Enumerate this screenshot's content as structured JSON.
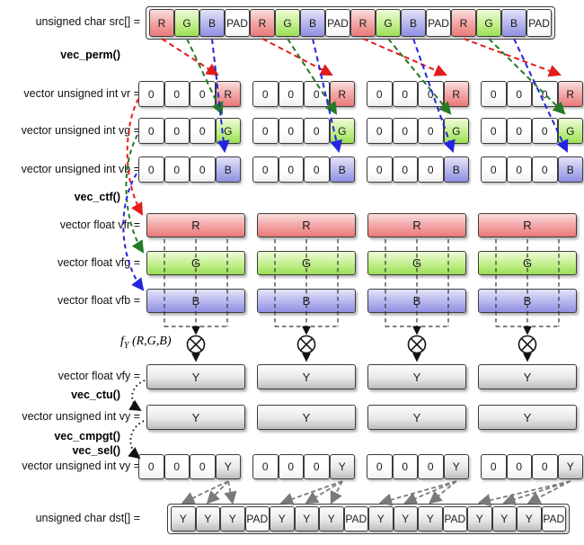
{
  "diagram": {
    "labels": {
      "src": "unsigned char src[] =",
      "vec_perm": "vec_perm()",
      "vr": "vector unsigned int vr =",
      "vg": "vector unsigned int vg =",
      "vb": "vector unsigned int vb =",
      "vec_ctf": "vec_ctf()",
      "vfr": "vector float vfr =",
      "vfg": "vector float vfg =",
      "vfb": "vector float vfb =",
      "fy_f": "f",
      "fy_sub": "Y",
      "fy_args": "(R,G,B)",
      "vfy": "vector float vfy =",
      "vec_ctu": "vec_ctu()",
      "vy": "vector unsigned int vy =",
      "vec_cmpgt": "vec_cmpgt()",
      "vec_sel": "vec_sel()",
      "vy2": "vector unsigned int vy =",
      "dst": "unsigned char dst[] ="
    },
    "rows": {
      "src_cells": [
        "R",
        "G",
        "B",
        "PAD",
        "R",
        "G",
        "B",
        "PAD",
        "R",
        "G",
        "B",
        "PAD",
        "R",
        "G",
        "B",
        "PAD"
      ],
      "vr_cells": [
        "0",
        "0",
        "0",
        "R"
      ],
      "vg_cells": [
        "0",
        "0",
        "0",
        "G"
      ],
      "vb_cells": [
        "0",
        "0",
        "0",
        "B"
      ],
      "vy2_cells": [
        "0",
        "0",
        "0",
        "Y"
      ],
      "dst_cells": [
        "Y",
        "Y",
        "Y",
        "PAD",
        "Y",
        "Y",
        "Y",
        "PAD",
        "Y",
        "Y",
        "Y",
        "PAD",
        "Y",
        "Y",
        "Y",
        "PAD"
      ],
      "bars": {
        "vfr": "R",
        "vfg": "G",
        "vfb": "B",
        "vfy": "Y",
        "vy": "Y"
      },
      "groups": 4
    },
    "operator": {
      "name": "multiply-icon",
      "glyph": "circled-x",
      "count": 4
    },
    "colors": {
      "r_top": "#fbdede",
      "r_mid": "#f2a2a2",
      "r_bottom": "#ea7979",
      "g_top": "#eefbd8",
      "g_mid": "#c2ef8d",
      "g_bottom": "#9bdf55",
      "b_top": "#e3e3f9",
      "b_mid": "#b5b5ee",
      "b_bottom": "#8f8fe2",
      "gray_top": "#fdfdfd",
      "gray_mid": "#e8e8e8",
      "gray_bottom": "#bdbdbd",
      "zero_top": "#ffffff",
      "zero_bottom": "#efefef",
      "pad_top": "#ffffff",
      "pad_bottom": "#f6f6f6",
      "arrow_red": "#e41b1b",
      "arrow_green": "#257a25",
      "arrow_blue": "#2525e0",
      "arrow_gray": "#7a7a7a",
      "arrow_black": "#111111",
      "border": "#3c3c3c"
    }
  }
}
